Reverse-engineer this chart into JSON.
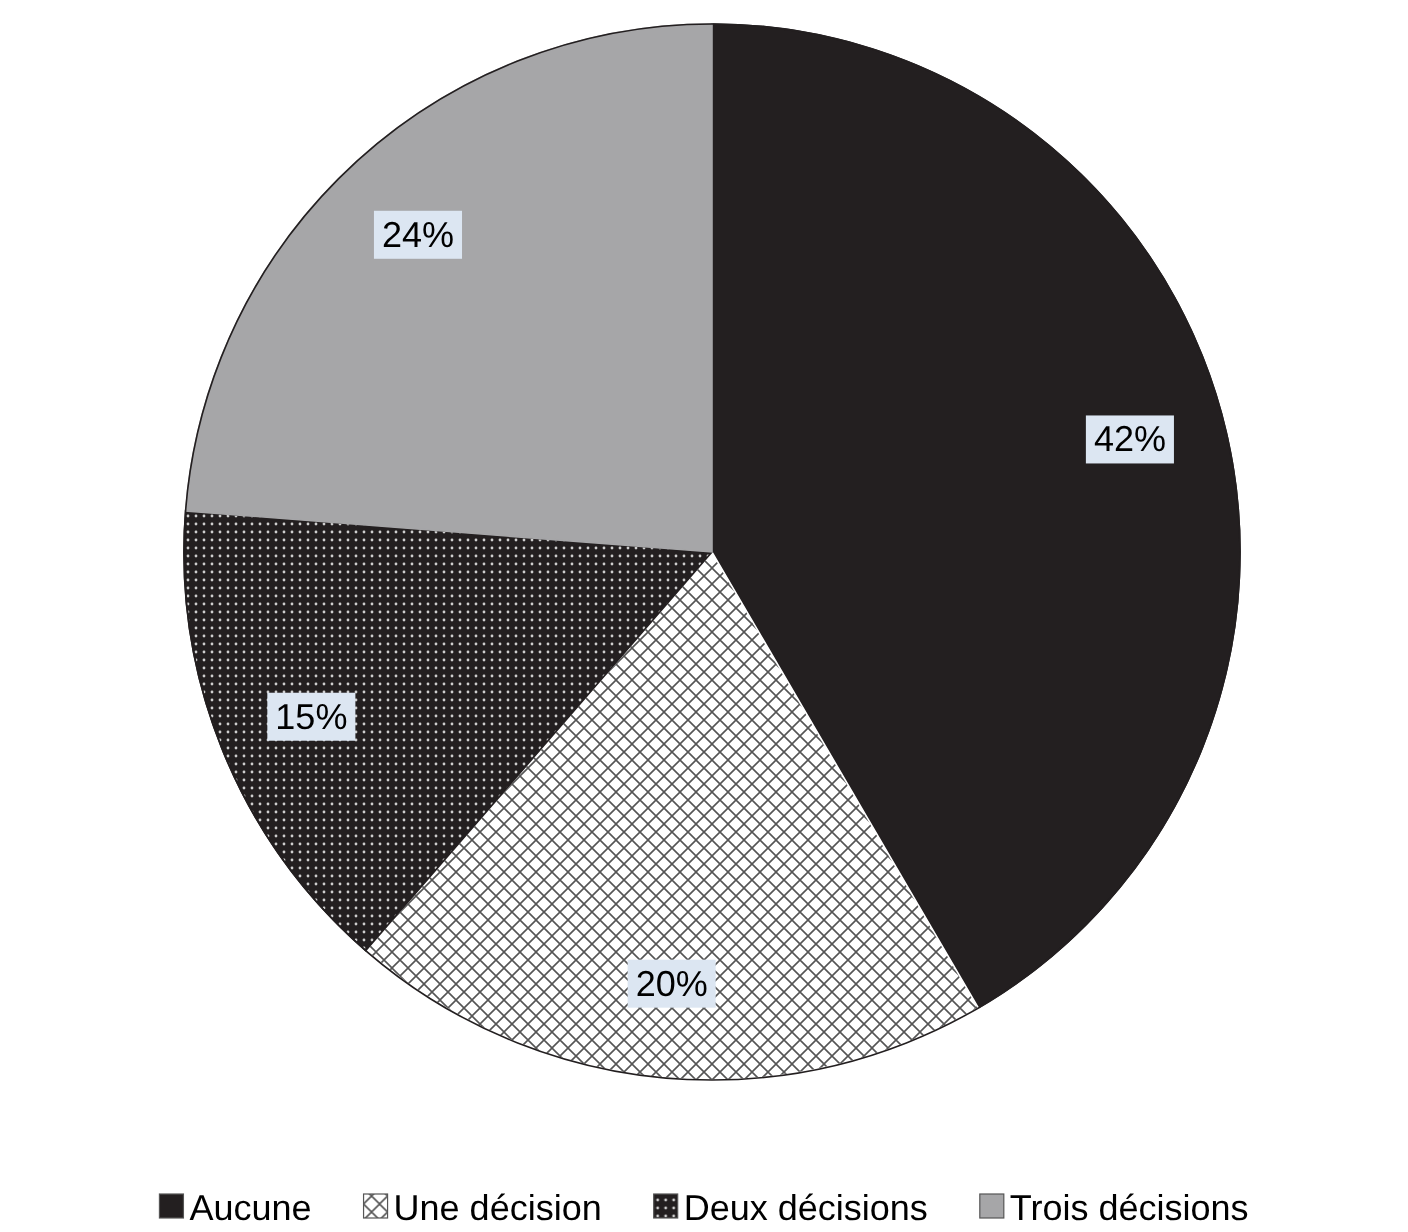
{
  "chart_data": {
    "type": "pie",
    "categories": [
      "Aucune",
      "Une décision",
      "Deux décisions",
      "Trois décisions"
    ],
    "values": [
      42,
      20,
      15,
      24
    ],
    "colors": [
      "#231f20",
      "#ffffff",
      "#231f20",
      "#a6a6a8"
    ],
    "value_labels": [
      "42%",
      "20%",
      "15%",
      "24%"
    ],
    "legend": "bottom"
  }
}
